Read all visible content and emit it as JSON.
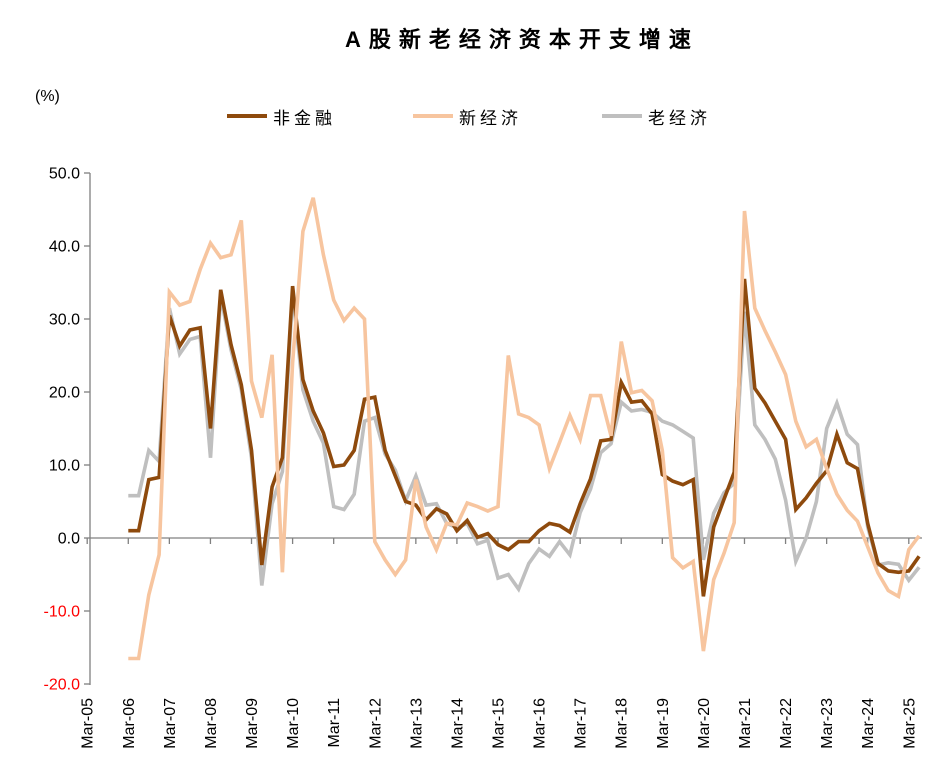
{
  "title": "A股新老经济资本开支增速",
  "y_axis": {
    "unit": "(%)",
    "ticks": [
      50,
      40,
      30,
      20,
      10,
      0,
      -10,
      -20
    ],
    "tick_label_color_positive": "#000000",
    "tick_label_color_negative": "#FF0000"
  },
  "x_axis": {
    "labels": [
      "Mar-05",
      "Mar-06",
      "Mar-07",
      "Mar-08",
      "Mar-09",
      "Mar-10",
      "Mar-11",
      "Mar-12",
      "Mar-13",
      "Mar-14",
      "Mar-15",
      "Mar-16",
      "Mar-17",
      "Mar-18",
      "Mar-19",
      "Mar-20",
      "Mar-21",
      "Mar-22",
      "Mar-23",
      "Mar-24",
      "Mar-25"
    ]
  },
  "legend": [
    {
      "label": "非金融",
      "color": "#8E4A0D"
    },
    {
      "label": "新经济",
      "color": "#F7C59F"
    },
    {
      "label": "老经济",
      "color": "#BFBFBF"
    }
  ],
  "colors": {
    "axis": "#808080",
    "background": "#FFFFFF",
    "title_text": "#000000"
  },
  "chart_data": {
    "type": "line",
    "title": "A股新老经济资本开支增速",
    "ylabel": "(%)",
    "ylim": [
      -20,
      50
    ],
    "y_tick_step": 10,
    "grid": false,
    "legend_position": "top",
    "x_first_point": "2006Q1",
    "x_last_point": "2025Q2",
    "x_frequency": "quarterly",
    "x_shown_tick_labels": [
      "Mar-05",
      "Mar-06",
      "Mar-07",
      "Mar-08",
      "Mar-09",
      "Mar-10",
      "Mar-11",
      "Mar-12",
      "Mar-13",
      "Mar-14",
      "Mar-15",
      "Mar-16",
      "Mar-17",
      "Mar-18",
      "Mar-19",
      "Mar-20",
      "Mar-21",
      "Mar-22",
      "Mar-23",
      "Mar-24",
      "Mar-25"
    ],
    "series": [
      {
        "name": "非金融",
        "id": "non-financial",
        "color": "#8E4A0D",
        "values": [
          1.0,
          1.0,
          8.0,
          8.3,
          30.5,
          26.3,
          28.5,
          28.8,
          15.0,
          34.0,
          26.5,
          21.0,
          12.0,
          -3.7,
          7.0,
          11.0,
          34.5,
          21.7,
          17.4,
          14.4,
          9.8,
          10.0,
          12.0,
          19.0,
          19.3,
          12.0,
          8.5,
          5.0,
          4.5,
          2.5,
          4.0,
          3.3,
          1.0,
          2.4,
          0.1,
          0.6,
          -0.9,
          -1.6,
          -0.5,
          -0.5,
          1.0,
          2.0,
          1.7,
          0.8,
          4.7,
          8.1,
          13.3,
          13.5,
          21.3,
          18.6,
          18.8,
          17.0,
          8.7,
          7.8,
          7.3,
          8.0,
          -8.0,
          1.5,
          5.3,
          9.0,
          35.5,
          20.5,
          18.5,
          16.0,
          13.5,
          3.9,
          5.5,
          7.5,
          9.2,
          14.2,
          10.3,
          9.5,
          2.0,
          -3.5,
          -4.5,
          -4.7,
          -4.5,
          -2.5
        ]
      },
      {
        "name": "新经济",
        "id": "new-economy",
        "color": "#F7C59F",
        "values": [
          -16.5,
          -16.5,
          -7.8,
          -2.3,
          33.7,
          31.9,
          32.4,
          36.8,
          40.4,
          38.4,
          38.8,
          43.5,
          21.5,
          16.5,
          25.1,
          -4.7,
          24.0,
          42.0,
          46.6,
          38.8,
          32.6,
          29.8,
          31.5,
          30.0,
          -0.5,
          -3.0,
          -5.0,
          -3.0,
          8.0,
          1.5,
          -1.6,
          2.0,
          1.8,
          4.8,
          4.3,
          3.7,
          4.3,
          25.0,
          17.0,
          16.5,
          15.5,
          9.5,
          13.1,
          16.8,
          13.5,
          19.5,
          19.5,
          14.0,
          26.9,
          19.9,
          20.2,
          18.8,
          12.0,
          -2.7,
          -4.1,
          -3.2,
          -15.5,
          -5.7,
          -2.1,
          2.1,
          44.8,
          31.5,
          28.4,
          25.5,
          22.4,
          16.0,
          12.5,
          13.5,
          9.5,
          6.0,
          3.8,
          2.3,
          -1.2,
          -4.8,
          -7.2,
          -8.0,
          -1.6,
          0.3
        ]
      },
      {
        "name": "老经济",
        "id": "old-economy",
        "color": "#BFBFBF",
        "values": [
          5.8,
          5.8,
          12.0,
          10.5,
          31.5,
          25.2,
          27.2,
          27.6,
          11.0,
          33.2,
          25.8,
          20.3,
          11.0,
          -6.5,
          4.7,
          9.1,
          33.5,
          20.3,
          16.0,
          13.0,
          4.3,
          3.9,
          6.0,
          16.0,
          16.5,
          11.5,
          9.3,
          5.1,
          8.5,
          4.5,
          4.7,
          2.0,
          1.4,
          2.0,
          -0.8,
          -0.3,
          -5.5,
          -5.0,
          -7.0,
          -3.5,
          -1.5,
          -2.5,
          -0.5,
          -2.3,
          3.5,
          6.7,
          11.7,
          12.9,
          18.6,
          17.4,
          17.6,
          17.2,
          16.0,
          15.5,
          14.6,
          13.7,
          -3.0,
          3.4,
          6.2,
          7.5,
          31.0,
          15.5,
          13.5,
          10.8,
          5.2,
          -3.2,
          0.0,
          5.0,
          15.0,
          18.5,
          14.2,
          12.8,
          1.5,
          -3.7,
          -3.4,
          -3.6,
          -5.8,
          -4.0
        ]
      }
    ]
  }
}
